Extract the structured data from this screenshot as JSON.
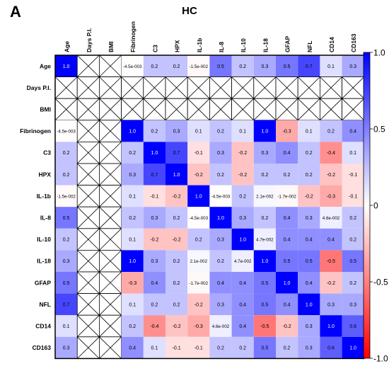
{
  "chart_data": {
    "type": "heatmap",
    "panel_label": "A",
    "title": "HC",
    "xlabel": "",
    "ylabel": "",
    "variables": [
      "Age",
      "Days P.I.",
      "BMI",
      "Fibrinogen",
      "C3",
      "HPX",
      "IL-1b",
      "IL-8",
      "IL-10",
      "IL-18",
      "GFAP",
      "NFL",
      "CD14",
      "CD163"
    ],
    "missing_variables": [
      "Days P.I.",
      "BMI"
    ],
    "missing_marker": "crossed cell",
    "matrix": [
      [
        "1.0",
        null,
        null,
        "-4.5e-003",
        "0.2",
        "0.2",
        "-1.5e-002",
        "0.5",
        "0.2",
        "0.3",
        "0.5",
        "0.7",
        "0.1",
        "0.3"
      ],
      [
        null,
        null,
        null,
        null,
        null,
        null,
        null,
        null,
        null,
        null,
        null,
        null,
        null,
        null
      ],
      [
        null,
        null,
        null,
        null,
        null,
        null,
        null,
        null,
        null,
        null,
        null,
        null,
        null,
        null
      ],
      [
        "-4.5e-003",
        null,
        null,
        "1.0",
        "0.2",
        "0.3",
        "0.1",
        "0.2",
        "0.1",
        "1.0",
        "-0.3",
        "0.1",
        "0.2",
        "0.4"
      ],
      [
        "0.2",
        null,
        null,
        "0.2",
        "1.0",
        "0.7",
        "-0.1",
        "0.3",
        "-0.2",
        "0.3",
        "0.4",
        "0.2",
        "-0.4",
        "0.1"
      ],
      [
        "0.2",
        null,
        null,
        "0.3",
        "0.7",
        "1.0",
        "-0.2",
        "0.2",
        "-0.2",
        "0.2",
        "0.2",
        "0.2",
        "-0.2",
        "-0.1"
      ],
      [
        "-1.5e-002",
        null,
        null,
        "0.1",
        "-0.1",
        "-0.2",
        "1.0",
        "-4.5e-003",
        "0.2",
        "2.1e-002",
        "-1.7e-002",
        "-0.2",
        "-0.3",
        "-0.1"
      ],
      [
        "0.5",
        null,
        null,
        "0.2",
        "0.3",
        "0.2",
        "-4.5e-003",
        "1.0",
        "0.3",
        "0.2",
        "0.4",
        "0.3",
        "4.6e-002",
        "0.2"
      ],
      [
        "0.2",
        null,
        null,
        "0.1",
        "-0.2",
        "-0.2",
        "0.2",
        "0.3",
        "1.0",
        "4.7e-002",
        "0.4",
        "0.4",
        "0.4",
        "0.2"
      ],
      [
        "0.3",
        null,
        null,
        "1.0",
        "0.3",
        "0.2",
        "2.1e-002",
        "0.2",
        "4.7e-002",
        "1.0",
        "0.5",
        "0.5",
        "-0.5",
        "0.5"
      ],
      [
        "0.5",
        null,
        null,
        "-0.3",
        "0.4",
        "0.2",
        "-1.7e-002",
        "0.4",
        "0.4",
        "0.5",
        "1.0",
        "0.4",
        "-0.2",
        "0.2"
      ],
      [
        "0.7",
        null,
        null,
        "0.1",
        "0.2",
        "0.2",
        "-0.2",
        "0.3",
        "0.4",
        "0.5",
        "0.4",
        "1.0",
        "0.3",
        "0.3"
      ],
      [
        "0.1",
        null,
        null,
        "0.2",
        "-0.4",
        "-0.2",
        "-0.3",
        "4.6e-002",
        "0.4",
        "-0.5",
        "-0.2",
        "0.3",
        "1.0",
        "0.6"
      ],
      [
        "0.3",
        null,
        null,
        "0.4",
        "0.1",
        "-0.1",
        "-0.1",
        "0.2",
        "0.2",
        "0.5",
        "0.2",
        "0.3",
        "0.6",
        "1.0"
      ]
    ],
    "color_scale": {
      "min": -1.0,
      "max": 1.0,
      "ticks": [
        "1.0",
        "0.5",
        "0",
        "-0.5",
        "-1.0"
      ],
      "tick_values": [
        1.0,
        0.5,
        0,
        -0.5,
        -1.0
      ],
      "low_color": "#ff0000",
      "mid_color": "#ffffff",
      "high_color": "#0000ff"
    },
    "legend_placement": "right"
  }
}
